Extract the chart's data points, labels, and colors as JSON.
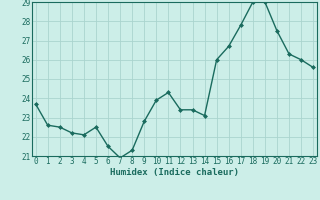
{
  "x": [
    0,
    1,
    2,
    3,
    4,
    5,
    6,
    7,
    8,
    9,
    10,
    11,
    12,
    13,
    14,
    15,
    16,
    17,
    18,
    19,
    20,
    21,
    22,
    23
  ],
  "y": [
    23.7,
    22.6,
    22.5,
    22.2,
    22.1,
    22.5,
    21.5,
    20.9,
    21.3,
    22.8,
    23.9,
    24.3,
    23.4,
    23.4,
    23.1,
    26.0,
    26.7,
    27.8,
    29.0,
    29.0,
    27.5,
    26.3,
    26.0,
    25.6
  ],
  "bg_color": "#cceee8",
  "grid_color": "#aad4ce",
  "line_color": "#1a6b5e",
  "marker_color": "#1a6b5e",
  "xlabel": "Humidex (Indice chaleur)",
  "ylim": [
    21,
    29
  ],
  "yticks": [
    21,
    22,
    23,
    24,
    25,
    26,
    27,
    28,
    29
  ],
  "xticks": [
    0,
    1,
    2,
    3,
    4,
    5,
    6,
    7,
    8,
    9,
    10,
    11,
    12,
    13,
    14,
    15,
    16,
    17,
    18,
    19,
    20,
    21,
    22,
    23
  ],
  "font_color": "#1a6b5e",
  "tick_fontsize": 5.5,
  "xlabel_fontsize": 6.5,
  "linewidth": 1.0,
  "markersize": 2.0
}
